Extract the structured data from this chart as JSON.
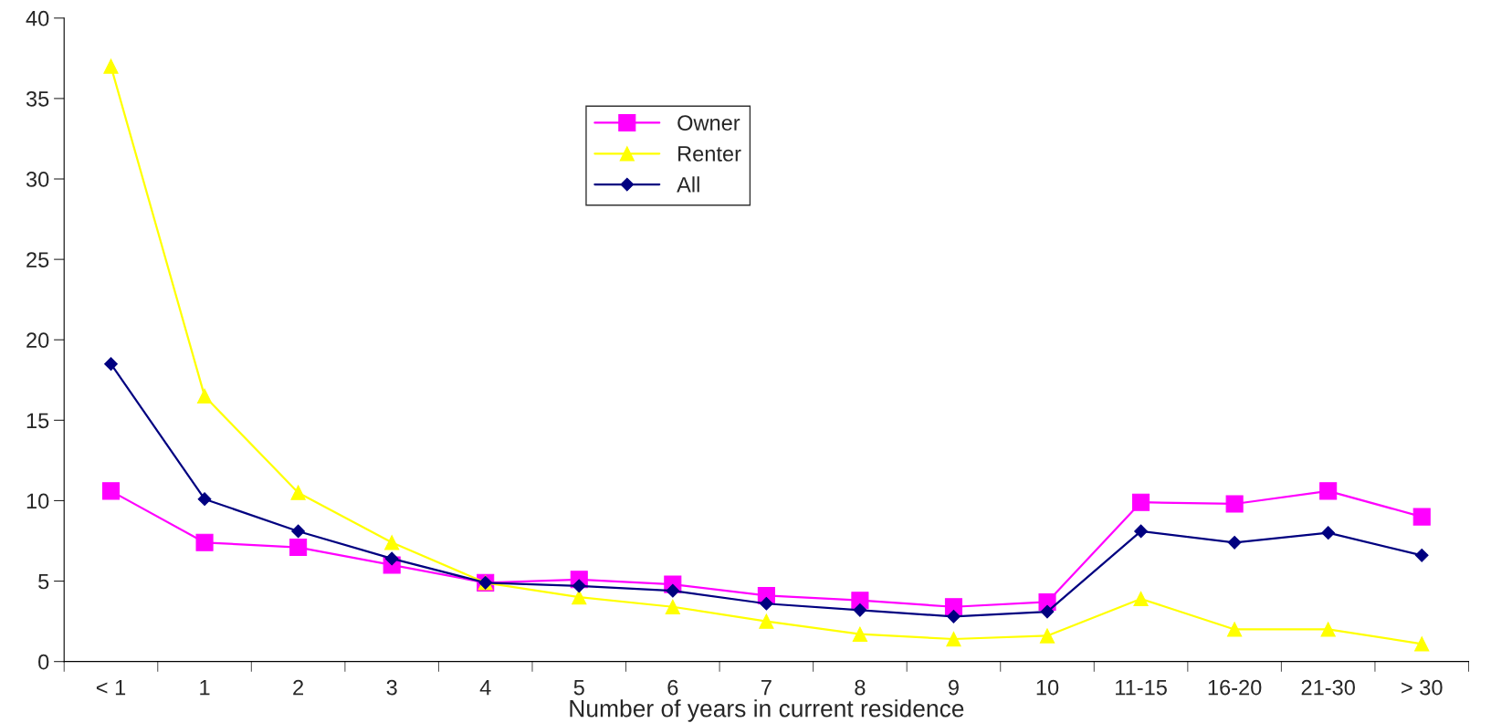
{
  "chart_data": {
    "type": "line",
    "xlabel": "Number of years in current residence",
    "categories": [
      "< 1",
      "1",
      "2",
      "3",
      "4",
      "5",
      "6",
      "7",
      "8",
      "9",
      "10",
      "11-15",
      "16-20",
      "21-30",
      "> 30"
    ],
    "series": [
      {
        "name": "Owner",
        "color": "#ff00ff",
        "marker": "square",
        "values": [
          10.6,
          7.4,
          7.1,
          6.0,
          4.9,
          5.1,
          4.8,
          4.1,
          3.8,
          3.4,
          3.7,
          9.9,
          9.8,
          10.6,
          9.0
        ]
      },
      {
        "name": "Renter",
        "color": "#ffff00",
        "marker": "triangle",
        "values": [
          37.0,
          16.5,
          10.5,
          7.4,
          4.9,
          4.0,
          3.4,
          2.5,
          1.7,
          1.4,
          1.6,
          3.9,
          2.0,
          2.0,
          1.1
        ]
      },
      {
        "name": "All",
        "color": "#000080",
        "marker": "diamond",
        "values": [
          18.5,
          10.1,
          8.1,
          6.4,
          4.9,
          4.7,
          4.4,
          3.6,
          3.2,
          2.8,
          3.1,
          8.1,
          7.4,
          8.0,
          6.6
        ]
      }
    ],
    "ylim": [
      0,
      40
    ],
    "yticks": [
      0,
      5,
      10,
      15,
      20,
      25,
      30,
      35,
      40
    ],
    "grid": false,
    "legend": "top",
    "line_style": "solid"
  }
}
